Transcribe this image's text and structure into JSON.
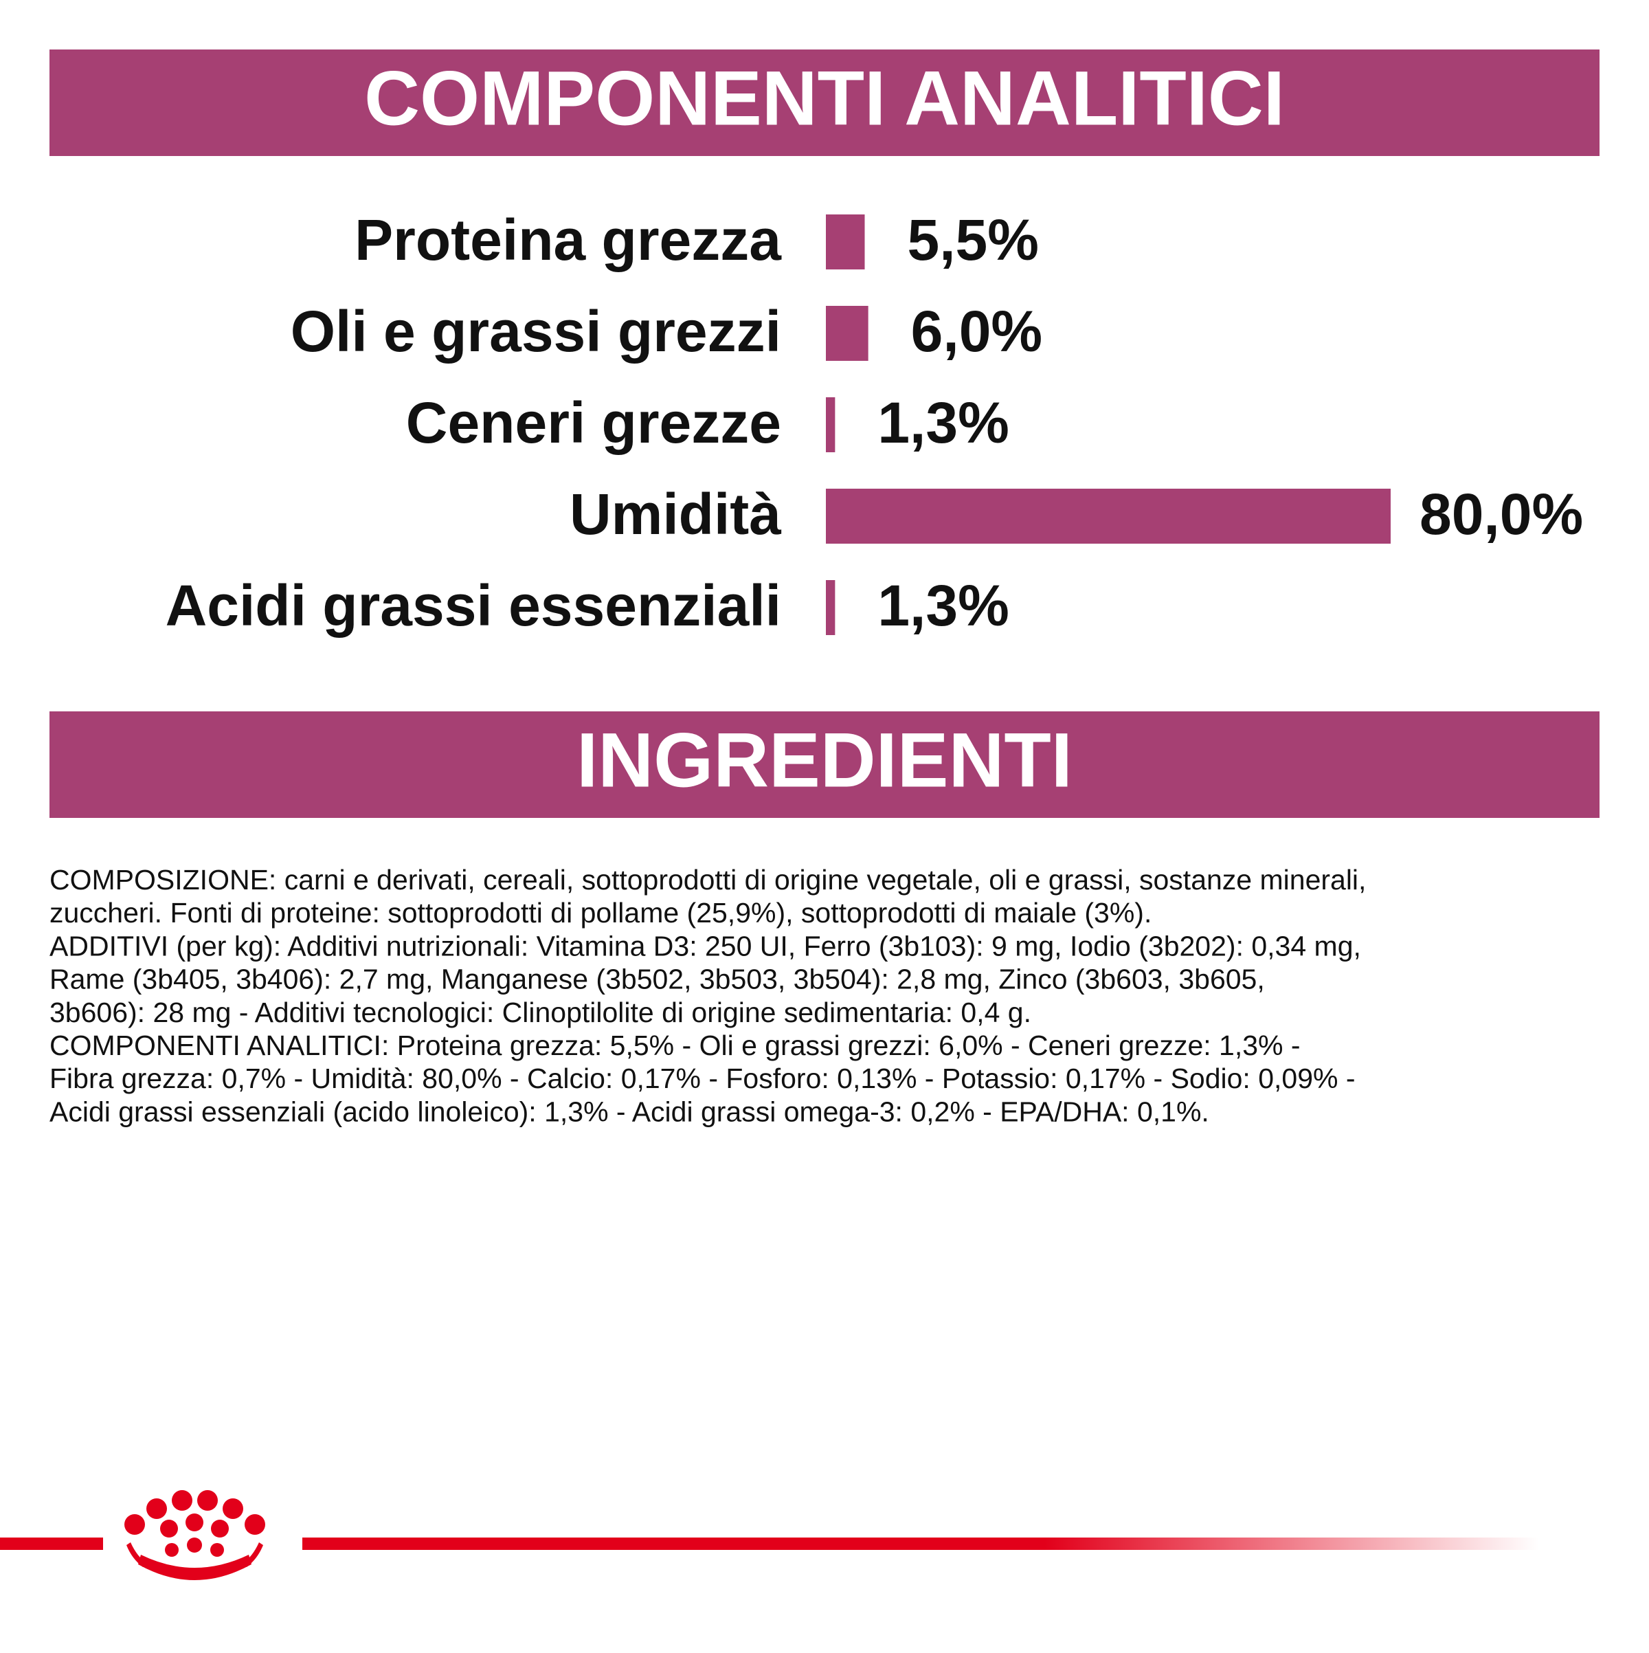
{
  "chart_data": {
    "type": "bar",
    "orientation": "horizontal",
    "title": "COMPONENTI ANALITICI",
    "categories": [
      "Proteina grezza",
      "Oli e grassi grezzi",
      "Ceneri grezze",
      "Umidità",
      "Acidi grassi essenziali"
    ],
    "values": [
      5.5,
      6.0,
      1.3,
      80.0,
      1.3
    ],
    "value_labels": [
      "5,5%",
      "6,0%",
      "1,3%",
      "80,0%",
      "1,3%"
    ],
    "color": "#a64073"
  },
  "ingredients": {
    "title": "INGREDIENTI",
    "lines": [
      "COMPOSIZIONE: carni e derivati, cereali, sottoprodotti di origine vegetale, oli e grassi, sostanze minerali,",
      "zuccheri. Fonti di proteine: sottoprodotti di pollame (25,9%), sottoprodotti di maiale (3%).",
      "ADDITIVI (per kg): Additivi nutrizionali: Vitamina D3: 250 UI, Ferro (3b103): 9 mg, Iodio (3b202): 0,34 mg,",
      "Rame (3b405, 3b406): 2,7 mg, Manganese (3b502, 3b503, 3b504): 2,8 mg, Zinco (3b603, 3b605,",
      "3b606): 28 mg - Additivi tecnologici: Clinoptilolite di origine sedimentaria: 0,4 g.",
      "COMPONENTI ANALITICI: Proteina grezza: 5,5% - Oli e grassi grezzi: 6,0% - Ceneri grezze: 1,3% -",
      "Fibra grezza: 0,7% - Umidità: 80,0% - Calcio: 0,17% - Fosforo: 0,13% - Potassio: 0,17% - Sodio: 0,09% -",
      "Acidi grassi essenziali (acido linoleico): 1,3% - Acidi grassi omega-3: 0,2% - EPA/DHA: 0,1%."
    ]
  }
}
